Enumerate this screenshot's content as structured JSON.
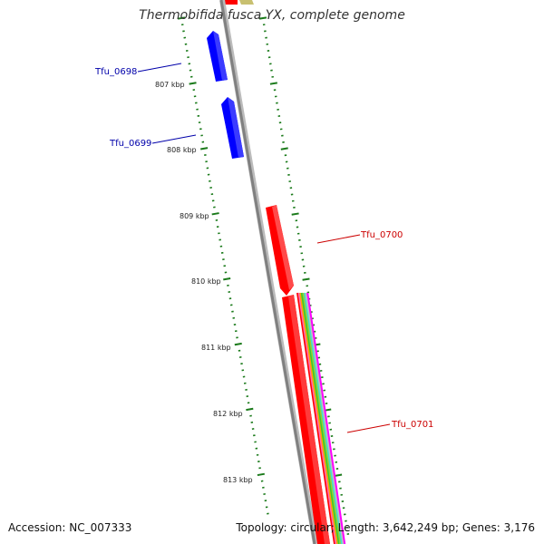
{
  "title": "Thermobifida fusca YX, complete genome",
  "footer": {
    "accession": "Accession: NC_007333",
    "topology": "Topology: circular; Length: 3,642,249 bp; Genes: 3,176"
  },
  "colors": {
    "background": "#ffffff",
    "backbone": "#808080",
    "forward_gene": "#ff0000",
    "reverse_gene": "#0000ff",
    "tick": "#1a7a1a",
    "forward_label": "#cc0000",
    "reverse_label": "#0000aa"
  },
  "scale_labels": [
    "807 kbp",
    "808 kbp",
    "809 kbp",
    "810 kbp",
    "811 kbp",
    "812 kbp",
    "813 kbp"
  ],
  "genes": [
    {
      "name": "Tfu_0698",
      "strand": "reverse"
    },
    {
      "name": "Tfu_0699",
      "strand": "reverse"
    },
    {
      "name": "Tfu_0700",
      "strand": "forward"
    },
    {
      "name": "Tfu_0701",
      "strand": "forward"
    }
  ],
  "feature_track_colors": [
    "#ff0000",
    "#ff69b4",
    "#ffa500",
    "#32cd32",
    "#9acd32",
    "#40e0d0",
    "#c0c0c0",
    "#ff00ff"
  ]
}
